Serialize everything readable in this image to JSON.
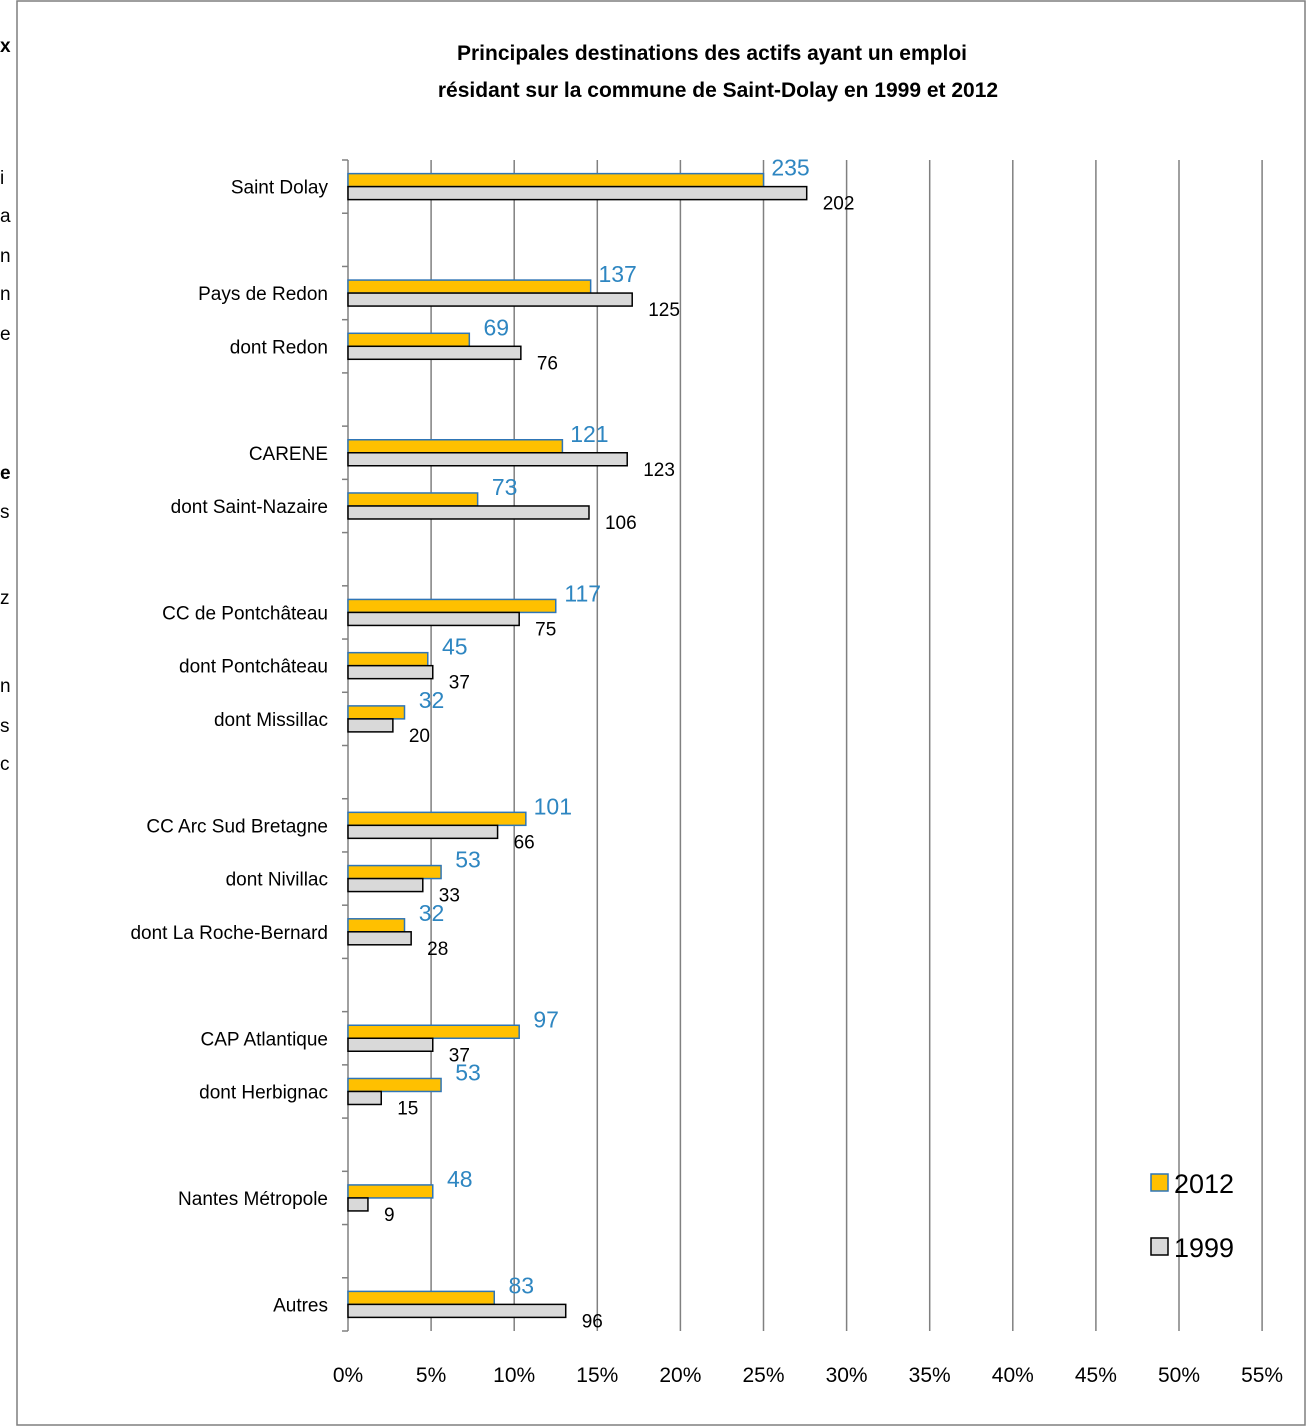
{
  "chart_data": {
    "type": "bar",
    "orientation": "horizontal",
    "title": "Principales destinations des actifs ayant un emploi résidant sur la commune de Saint-Dolay en 1999 et 2012",
    "title_lines": [
      "Principales destinations des actifs ayant un emploi",
      "résidant sur la commune de Saint-Dolay en 1999 et 2012"
    ],
    "categories": [
      "Saint Dolay",
      "",
      "Pays de Redon",
      "dont Redon",
      "",
      "CARENE",
      "dont Saint-Nazaire",
      "",
      "CC de Pontchâteau",
      "dont Pontchâteau",
      "dont Missillac",
      "",
      "CC Arc Sud Bretagne",
      "dont Nivillac",
      "dont La Roche-Bernard",
      "",
      "CAP Atlantique",
      "dont Herbignac",
      "",
      "Nantes Métropole",
      "",
      "Autres"
    ],
    "series": [
      {
        "name": "2012",
        "values": [
          25.0,
          null,
          14.6,
          7.3,
          null,
          12.9,
          7.8,
          null,
          12.5,
          4.8,
          3.4,
          null,
          10.7,
          5.6,
          3.4,
          null,
          10.3,
          5.6,
          null,
          5.1,
          null,
          8.8
        ],
        "labels": [
          "235",
          "",
          "137",
          "69",
          "",
          "121",
          "73",
          "",
          "117",
          "45",
          "32",
          "",
          "101",
          "53",
          "32",
          "",
          "97",
          "53",
          "",
          "48",
          "",
          "83"
        ],
        "fill": "#FFC000",
        "stroke": "#2E75B6",
        "label_color": "#2E86C1"
      },
      {
        "name": "1999",
        "values": [
          27.6,
          null,
          17.1,
          10.4,
          null,
          16.8,
          14.5,
          null,
          10.3,
          5.1,
          2.7,
          null,
          9.0,
          4.5,
          3.8,
          null,
          5.1,
          2.0,
          null,
          1.2,
          null,
          13.1
        ],
        "labels": [
          "202",
          "",
          "125",
          "76",
          "",
          "123",
          "106",
          "",
          "75",
          "37",
          "20",
          "",
          "66",
          "33",
          "28",
          "",
          "37",
          "15",
          "",
          "9",
          "",
          "96"
        ],
        "fill": "#D9D9D9",
        "stroke": "#000000",
        "label_color": "#000000"
      }
    ],
    "xlim": [
      0,
      55
    ],
    "xticks": [
      "0%",
      "5%",
      "10%",
      "15%",
      "20%",
      "25%",
      "30%",
      "35%",
      "40%",
      "45%",
      "50%",
      "55%"
    ],
    "grid": true,
    "legend_position": "bottom-right",
    "gridline_color": "#808080"
  },
  "left_edge_fragments": [
    "x",
    "i",
    "a",
    "n",
    "n",
    "e",
    "e",
    "s",
    "z",
    "n",
    "s",
    "c"
  ]
}
